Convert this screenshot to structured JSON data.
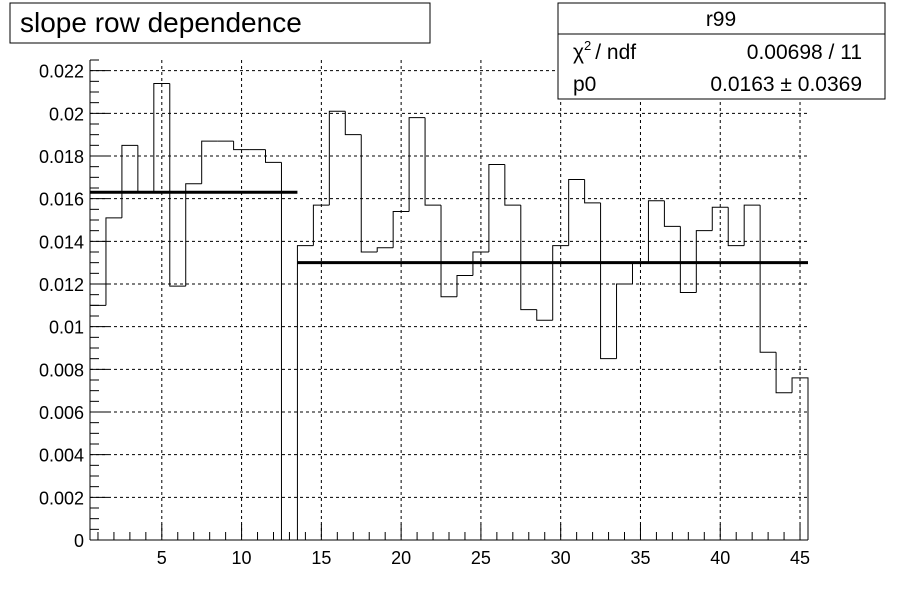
{
  "chart_data": {
    "type": "histogram",
    "title": "slope row dependence",
    "xlabel": "",
    "ylabel": "",
    "xlim": [
      0.5,
      45.5
    ],
    "ylim": [
      0,
      0.0225
    ],
    "grid": true,
    "x_ticks": [
      5,
      10,
      15,
      20,
      25,
      30,
      35,
      40,
      45
    ],
    "y_ticks": [
      "0",
      "0.002",
      "0.004",
      "0.006",
      "0.008",
      "0.01",
      "0.012",
      "0.014",
      "0.016",
      "0.018",
      "0.02",
      "0.022"
    ],
    "bin_width": 1,
    "bins": [
      1,
      2,
      3,
      4,
      5,
      6,
      7,
      8,
      9,
      10,
      11,
      12,
      13,
      14,
      15,
      16,
      17,
      18,
      19,
      20,
      21,
      22,
      23,
      24,
      25,
      26,
      27,
      28,
      29,
      30,
      31,
      32,
      33,
      34,
      35,
      36,
      37,
      38,
      39,
      40,
      41,
      42,
      43,
      44,
      45
    ],
    "values": [
      0.011,
      0.0151,
      0.0185,
      0.0163,
      0.0214,
      0.0119,
      0.0167,
      0.0187,
      0.0187,
      0.0183,
      0.0183,
      0.0177,
      0.0,
      0.0138,
      0.0157,
      0.0201,
      0.019,
      0.0135,
      0.0137,
      0.0154,
      0.0198,
      0.0157,
      0.0114,
      0.0124,
      0.0135,
      0.0176,
      0.0157,
      0.0108,
      0.0103,
      0.0138,
      0.0169,
      0.0158,
      0.0085,
      0.012,
      0.013,
      0.0159,
      0.0147,
      0.0116,
      0.0145,
      0.0156,
      0.0138,
      0.0157,
      0.0088,
      0.0069,
      0.0076
    ],
    "fits": [
      {
        "x_from": 0.5,
        "x_to": 13.5,
        "value": 0.0163
      },
      {
        "x_from": 13.5,
        "x_to": 45.5,
        "value": 0.013
      }
    ]
  },
  "stats_box": {
    "name": "r99",
    "chi2_label": "/ ndf",
    "chi2_symbol": "χ",
    "chi2_sup": "2",
    "chi2_value": "0.00698 / 11",
    "p0_label": "p0",
    "p0_value": "0.0163 ± 0.0369"
  }
}
